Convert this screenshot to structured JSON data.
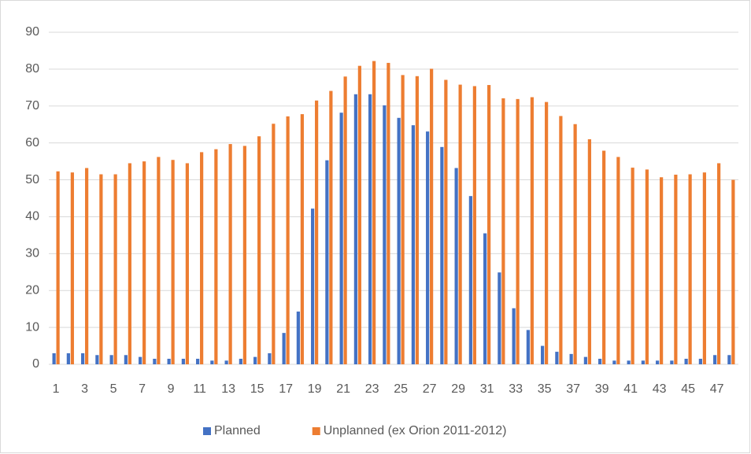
{
  "chart_data": {
    "type": "bar",
    "categories": [
      "1",
      null,
      "3",
      null,
      "5",
      null,
      "7",
      null,
      "9",
      null,
      "11",
      null,
      "13",
      null,
      "15",
      null,
      "17",
      null,
      "19",
      null,
      "21",
      null,
      "23",
      null,
      "25",
      null,
      "27",
      null,
      "29",
      null,
      "31",
      null,
      "33",
      null,
      "35",
      null,
      "37",
      null,
      "39",
      null,
      "41",
      null,
      "43",
      null,
      "45",
      null,
      "47",
      null
    ],
    "series": [
      {
        "name": "Planned",
        "color": "#4472c4",
        "values": [
          3,
          3,
          3,
          2.5,
          2.5,
          2.5,
          2,
          1.5,
          1.5,
          1.5,
          1.5,
          1,
          1,
          1.5,
          2,
          3,
          8.5,
          14.3,
          42.2,
          55.3,
          68.2,
          73.2,
          73.2,
          70.2,
          66.8,
          64.8,
          63.1,
          58.9,
          53.2,
          45.6,
          35.5,
          24.9,
          15.2,
          9.3,
          5,
          3.4,
          2.8,
          2,
          1.5,
          1,
          1,
          1,
          1,
          1,
          1.5,
          1.5,
          2.5,
          2.5
        ]
      },
      {
        "name": "Unplanned (ex Orion 2011-2012)",
        "color": "#ed7d31",
        "values": [
          52.3,
          52,
          53.2,
          51.5,
          51.5,
          54.5,
          55,
          56.2,
          55.4,
          54.5,
          57.5,
          58.3,
          59.7,
          59.2,
          61.8,
          65.2,
          67.2,
          67.8,
          71.5,
          74.1,
          78,
          80.9,
          82.2,
          81.7,
          78.4,
          78.1,
          80.1,
          77.1,
          75.8,
          75.4,
          75.7,
          72.1,
          71.9,
          72.4,
          71.1,
          67.3,
          65.1,
          61,
          57.9,
          56.2,
          53.3,
          52.8,
          50.7,
          51.4,
          51.5,
          52,
          54.5,
          50
        ]
      }
    ],
    "ylim": [
      0,
      90
    ],
    "yticks": [
      0,
      10,
      20,
      30,
      40,
      50,
      60,
      70,
      80,
      90
    ],
    "grid": true,
    "legend": "bottom"
  }
}
